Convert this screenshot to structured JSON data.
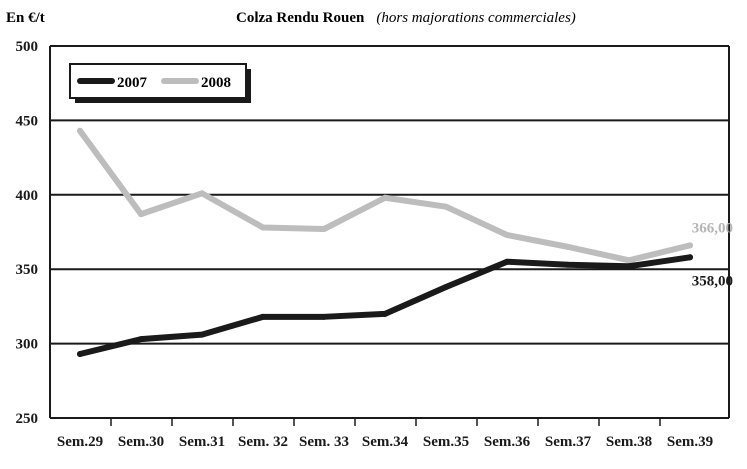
{
  "chart_data": {
    "type": "line",
    "title": "Colza Rendu Rouen",
    "subtitle": "(hors majorations commerciales)",
    "ylabel": "En €/t",
    "xlabel": "",
    "categories": [
      "Sem.29",
      "Sem.30",
      "Sem.31",
      "Sem. 32",
      "Sem. 33",
      "Sem.34",
      "Sem.35",
      "Sem.36",
      "Sem.37",
      "Sem.38",
      "Sem.39"
    ],
    "ylim": [
      250,
      500
    ],
    "yticks": [
      250,
      300,
      350,
      400,
      450,
      500
    ],
    "grid": true,
    "legend_position": "top-left",
    "series": [
      {
        "name": "2007",
        "color": "#1a1a1a",
        "values": [
          293,
          303,
          306,
          318,
          318,
          320,
          338,
          355,
          353,
          352,
          358
        ],
        "end_label": "358,00"
      },
      {
        "name": "2008",
        "color": "#bdbdbd",
        "values": [
          443,
          387,
          401,
          378,
          377,
          398,
          392,
          373,
          365,
          356,
          366
        ],
        "end_label": "366,00"
      }
    ]
  }
}
